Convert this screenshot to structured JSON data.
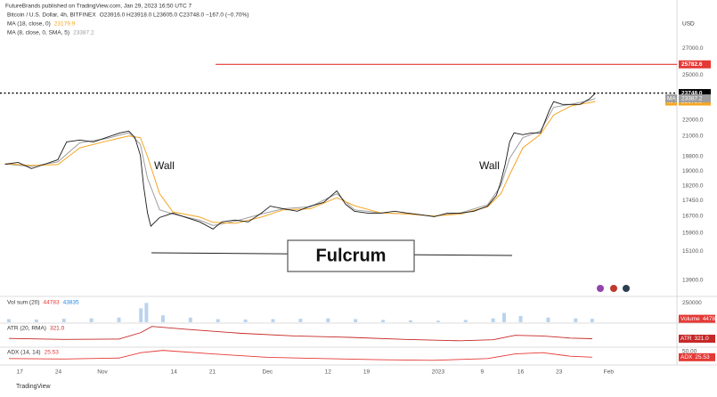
{
  "header": {
    "attribution": "FutureBrands published on TradingView.com, Jan 29, 2023 16:50 UTC 7",
    "footer": "TradingView"
  },
  "chart_data": [
    {
      "type": "line",
      "title": "Bitcoin / U.S. Dollar, 4h, BITFINEX",
      "ohlc": "O23916.0 H23918.0 L23605.0 C23748.0 −167.0 (−0.70%)",
      "currency": "USD",
      "log_scale": true,
      "grid": false,
      "xlim": [
        -2.8,
        119.4
      ],
      "xticks": [
        {
          "value": 0,
          "label": "17"
        },
        {
          "value": 7,
          "label": "24"
        },
        {
          "value": 15,
          "label": "Nov"
        },
        {
          "value": 28,
          "label": "14"
        },
        {
          "value": 35,
          "label": "21"
        },
        {
          "value": 45,
          "label": "Dec"
        },
        {
          "value": 56,
          "label": "12"
        },
        {
          "value": 63,
          "label": "19"
        },
        {
          "value": 76,
          "label": "2023"
        },
        {
          "value": 84,
          "label": "9"
        },
        {
          "value": 91,
          "label": "16"
        },
        {
          "value": 98,
          "label": "23"
        },
        {
          "value": 107,
          "label": "Feb"
        }
      ],
      "ylim": [
        13300,
        31000
      ],
      "yticks": [
        {
          "value": 27000,
          "label": "27000.0"
        },
        {
          "value": 25000,
          "label": "25000.0"
        },
        {
          "value": 22000,
          "label": "22000.0"
        },
        {
          "value": 21000,
          "label": "21000.0"
        },
        {
          "value": 19800,
          "label": "19800.0"
        },
        {
          "value": 19000,
          "label": "19000.0"
        },
        {
          "value": 18200,
          "label": "18200.0"
        },
        {
          "value": 17450,
          "label": "17450.0"
        },
        {
          "value": 16700,
          "label": "16700.0"
        },
        {
          "value": 15900,
          "label": "15900.0"
        },
        {
          "value": 15100,
          "label": "15100.0"
        },
        {
          "value": 13900,
          "label": "13900.0"
        }
      ],
      "price_lines": [
        {
          "value": 25782.6,
          "color": "#e53935"
        },
        {
          "value": 23748,
          "label": "23748.0",
          "color": "#000000"
        }
      ],
      "annotations": [
        "Wall",
        "Wall",
        "Fulcrum"
      ],
      "series": [
        {
          "color": "#1a1a1a",
          "x": [
            -2.7,
            -0.3,
            2.1,
            4.5,
            6.9,
            8.5,
            10.9,
            13.4,
            15.8,
            18.2,
            19.8,
            20.9,
            21.9,
            22.5,
            23.2,
            23.8,
            25.4,
            27.8,
            30.2,
            32.7,
            35.1,
            36.7,
            39.1,
            41.5,
            43.9,
            45.5,
            47.9,
            50.4,
            52.8,
            55.2,
            57.6,
            59.2,
            60.8,
            63.2,
            65.6,
            68.1,
            70.5,
            72.9,
            75.3,
            77.7,
            80.1,
            82.5,
            85.0,
            86.6,
            87.4,
            88.2,
            89.0,
            89.8,
            91.4,
            93.0,
            94.6,
            96.2,
            97.0,
            98.6,
            100.2,
            101.8,
            103.5,
            104.6
          ],
          "values": [
            19370,
            19470,
            19130,
            19370,
            19620,
            20650,
            20760,
            20650,
            20920,
            21190,
            21300,
            20920,
            19870,
            18170,
            16840,
            16220,
            16630,
            16840,
            16630,
            16420,
            16090,
            16420,
            16510,
            16420,
            16840,
            17180,
            17050,
            16930,
            17180,
            17360,
            17950,
            17270,
            16930,
            16840,
            16840,
            16930,
            16840,
            16760,
            16670,
            16840,
            16840,
            16930,
            17180,
            17720,
            18410,
            19370,
            20650,
            21190,
            21080,
            21190,
            21190,
            22590,
            23170,
            22990,
            22990,
            22990,
            23350,
            23748
          ]
        },
        {
          "name": "MA (18, close, 0)",
          "color": "#f5a623",
          "axis_badge": "MA",
          "last_value": 23179.9,
          "x": [
            -2.7,
            2.1,
            6.9,
            10.9,
            15.8,
            19.8,
            21.9,
            23.2,
            25.4,
            27.8,
            32.7,
            35.1,
            39.1,
            43.9,
            47.9,
            52.8,
            57.6,
            60.8,
            65.6,
            70.5,
            75.3,
            80.1,
            85.0,
            87.4,
            89.0,
            91.4,
            94.6,
            97.0,
            100.2,
            103.5,
            104.6
          ],
          "values": [
            19400,
            19300,
            19350,
            20300,
            20700,
            21000,
            20900,
            19800,
            17800,
            16900,
            16650,
            16400,
            16350,
            16650,
            17000,
            17050,
            17600,
            17200,
            16850,
            16800,
            16700,
            16800,
            17150,
            17800,
            18800,
            20300,
            21100,
            22300,
            22900,
            23100,
            23179.9
          ]
        },
        {
          "name": "MA (8, close, 0, SMA, 5)",
          "color": "#9e9e9e",
          "axis_badge": "MA",
          "last_value": 23387.2,
          "x": [
            -2.7,
            2.1,
            6.9,
            10.9,
            15.8,
            19.8,
            21.9,
            23.2,
            25.4,
            27.8,
            32.7,
            35.1,
            39.1,
            43.9,
            47.9,
            52.8,
            57.6,
            60.8,
            65.6,
            70.5,
            75.3,
            80.1,
            85.0,
            87.4,
            89.0,
            91.4,
            94.6,
            97.0,
            100.2,
            103.5,
            104.6
          ],
          "values": [
            19380,
            19250,
            19500,
            20600,
            20850,
            21200,
            20500,
            18600,
            17000,
            16800,
            16500,
            16250,
            16450,
            16800,
            17050,
            17150,
            17800,
            17000,
            16850,
            16800,
            16700,
            16850,
            17250,
            18200,
            19700,
            20900,
            21300,
            22800,
            23000,
            23250,
            23387.2
          ]
        }
      ]
    },
    {
      "type": "bar",
      "title": "Vol sum (20)",
      "axis_badge": "Volume",
      "last_value": 44783,
      "average": 43835,
      "color": "#a9c8e8",
      "xlim": [
        -2.8,
        119.4
      ],
      "ylim": [
        0,
        300000
      ],
      "yticks": [
        250000
      ],
      "x": [
        -2,
        3,
        8,
        13,
        18,
        22,
        23,
        26,
        31,
        36,
        41,
        46,
        51,
        56,
        61,
        66,
        71,
        76,
        81,
        86,
        88,
        91,
        96,
        101,
        104
      ],
      "values": [
        40000,
        35000,
        45000,
        50000,
        60000,
        180000,
        250000,
        90000,
        60000,
        40000,
        35000,
        40000,
        45000,
        50000,
        40000,
        30000,
        25000,
        20000,
        30000,
        50000,
        120000,
        80000,
        60000,
        50000,
        44783
      ]
    },
    {
      "type": "line",
      "title": "ATR (20, RMA)",
      "axis_badge": "ATR",
      "last_value": {
        "value": 321,
        "label": "321.0"
      },
      "color": "#c62828",
      "xlim": [
        -2.8,
        119.4
      ],
      "ylim": [
        100,
        750
      ],
      "x": [
        -2,
        8,
        18,
        22,
        24,
        30,
        40,
        50,
        60,
        70,
        80,
        86,
        90,
        95,
        100,
        104
      ],
      "values": [
        330,
        300,
        310,
        500,
        680,
        600,
        480,
        400,
        360,
        300,
        260,
        290,
        420,
        400,
        340,
        321
      ]
    },
    {
      "type": "line",
      "title": "ADX (14, 14)",
      "axis_badge": "ADX",
      "last_value": 25.53,
      "color": "#e53935",
      "xlim": [
        -2.8,
        119.4
      ],
      "ylim": [
        0,
        65
      ],
      "yticks": [
        {
          "value": 50,
          "label": "50.00"
        }
      ],
      "x": [
        -2,
        8,
        18,
        22,
        26,
        35,
        45,
        55,
        65,
        75,
        85,
        90,
        95,
        100,
        104
      ],
      "values": [
        20,
        18,
        22,
        45,
        55,
        40,
        25,
        20,
        15,
        12,
        20,
        40,
        45,
        30,
        25.53
      ]
    }
  ]
}
